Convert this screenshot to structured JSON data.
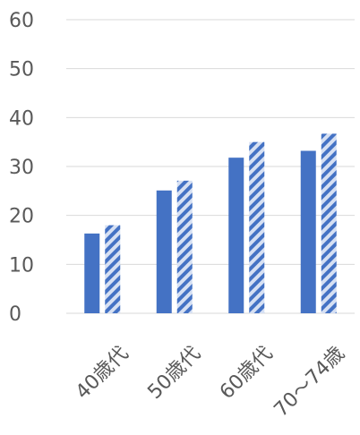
{
  "chart_data": {
    "type": "bar",
    "categories": [
      "40歳代",
      "50歳代",
      "60歳代",
      "70～74歳"
    ],
    "series": [
      {
        "values": [
          16.3,
          25.1,
          31.8,
          33.2
        ],
        "color": "#4472C4",
        "fill": "solid"
      },
      {
        "values": [
          18.0,
          27.1,
          35.0,
          36.7
        ],
        "color": "#4472C4",
        "fill": "diagonal-stripes"
      }
    ],
    "yticks": [
      0,
      10,
      20,
      30,
      40,
      50,
      60
    ],
    "ylim": [
      0,
      60
    ],
    "grid": true,
    "legend": "none",
    "title": "",
    "xlabel": "",
    "ylabel": ""
  }
}
